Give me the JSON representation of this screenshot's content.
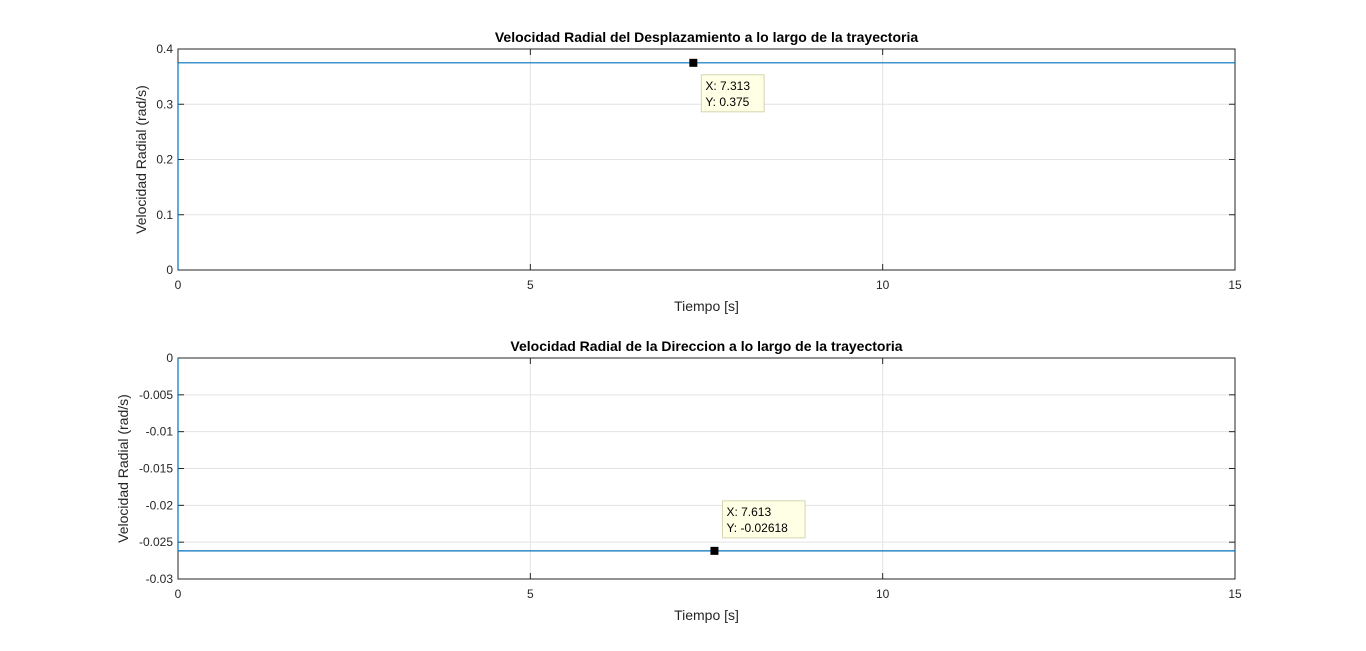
{
  "chart_data": [
    {
      "type": "line",
      "title": "Velocidad Radial del Desplazamiento a lo largo de la trayectoria",
      "xlabel": "Tiempo [s]",
      "ylabel": "Velocidad Radial (rad/s)",
      "xlim": [
        0,
        15
      ],
      "ylim": [
        0,
        0.4
      ],
      "xticks": [
        0,
        5,
        10,
        15
      ],
      "xtick_labels": [
        "0",
        "5",
        "10",
        "15"
      ],
      "yticks": [
        0,
        0.1,
        0.2,
        0.3,
        0.4
      ],
      "ytick_labels": [
        "0",
        "0.1",
        "0.2",
        "0.3",
        "0.4"
      ],
      "grid": true,
      "series": [
        {
          "x": [
            0,
            0,
            15
          ],
          "y": [
            0,
            0.375,
            0.375
          ],
          "color": "#0072bd"
        }
      ],
      "datatip": {
        "x": 7.313,
        "y": 0.375,
        "x_text": "X: 7.313",
        "y_text": "Y: 0.375",
        "position": "below-right"
      }
    },
    {
      "type": "line",
      "title": "Velocidad Radial de la Direccion a lo largo de la trayectoria",
      "xlabel": "Tiempo [s]",
      "ylabel": "Velocidad Radial (rad/s)",
      "xlim": [
        0,
        15
      ],
      "ylim": [
        -0.03,
        0
      ],
      "xticks": [
        0,
        5,
        10,
        15
      ],
      "xtick_labels": [
        "0",
        "5",
        "10",
        "15"
      ],
      "yticks": [
        -0.03,
        -0.025,
        -0.02,
        -0.015,
        -0.01,
        -0.005,
        0
      ],
      "ytick_labels": [
        "-0.03",
        "-0.025",
        "-0.02",
        "-0.015",
        "-0.01",
        "-0.005",
        "0"
      ],
      "grid": true,
      "series": [
        {
          "x": [
            0,
            0,
            15
          ],
          "y": [
            0,
            -0.02618,
            -0.02618
          ],
          "color": "#0072bd"
        }
      ],
      "datatip": {
        "x": 7.613,
        "y": -0.02618,
        "x_text": "X: 7.613",
        "y_text": "Y: -0.02618",
        "position": "above-right"
      }
    }
  ]
}
